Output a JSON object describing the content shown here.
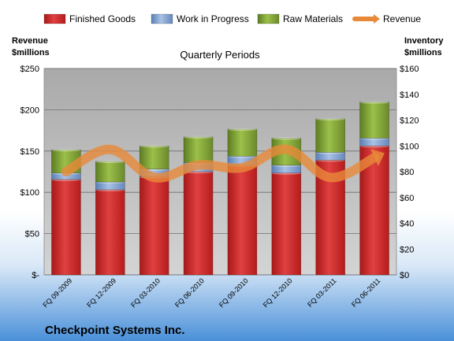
{
  "chart_data": {
    "type": "bar",
    "stacked": true,
    "title": "Quarterly Periods",
    "company": "Checkpoint Systems Inc.",
    "left_axis_label": [
      "Revenue",
      "$millions"
    ],
    "right_axis_label": [
      "Inventory",
      "$millions"
    ],
    "categories": [
      "FQ 09-2009",
      "FQ 12-2009",
      "FQ 03-2010",
      "FQ 06-2010",
      "FQ 09-2010",
      "FQ 12-2010",
      "FQ 03-2011",
      "FQ 06-2011"
    ],
    "series": [
      {
        "name": "Finished Goods",
        "axis": "right",
        "color": "#cc2222",
        "values": [
          74,
          66,
          76,
          80,
          85,
          79,
          89,
          100
        ]
      },
      {
        "name": "Work in Progress",
        "axis": "right",
        "color": "#7a9bc9",
        "values": [
          5,
          6,
          6,
          7,
          7,
          6,
          6,
          6
        ]
      },
      {
        "name": "Raw Materials",
        "axis": "right",
        "color": "#7a9a32",
        "values": [
          18,
          16,
          18,
          20,
          21,
          21,
          26,
          28
        ]
      },
      {
        "name": "Revenue",
        "axis": "left",
        "type": "line",
        "color": "#e8893a",
        "values": [
          125,
          152,
          118,
          133,
          130,
          152,
          118,
          142
        ]
      }
    ],
    "left_axis": {
      "ylim": [
        0,
        250
      ],
      "ticks": [
        0,
        50,
        100,
        150,
        200,
        250
      ],
      "tick_labels": [
        "$-",
        "$50",
        "$100",
        "$150",
        "$200",
        "$250"
      ]
    },
    "right_axis": {
      "ylim": [
        0,
        160
      ],
      "ticks": [
        0,
        20,
        40,
        60,
        80,
        100,
        120,
        140,
        160
      ],
      "tick_labels": [
        "$0",
        "$20",
        "$40",
        "$60",
        "$80",
        "$100",
        "$120",
        "$140",
        "$160"
      ]
    },
    "grid": true,
    "legend_position": "top"
  }
}
